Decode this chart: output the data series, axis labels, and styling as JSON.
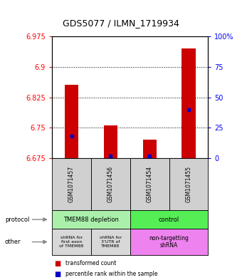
{
  "title": "GDS5077 / ILMN_1719934",
  "samples": [
    "GSM1071457",
    "GSM1071456",
    "GSM1071454",
    "GSM1071455"
  ],
  "bar_values": [
    6.855,
    6.755,
    6.72,
    6.945
  ],
  "bar_base": 6.675,
  "percentile_values": [
    0.18,
    0.02,
    0.02,
    0.4
  ],
  "ylim": [
    6.675,
    6.975
  ],
  "yticks": [
    6.675,
    6.75,
    6.825,
    6.9,
    6.975
  ],
  "ytick_labels": [
    "6.675",
    "6.75",
    "6.825",
    "6.9",
    "6.975"
  ],
  "y2ticks": [
    0,
    25,
    50,
    75,
    100
  ],
  "y2tick_labels": [
    "0",
    "25",
    "50",
    "75",
    "100%"
  ],
  "grid_values": [
    6.75,
    6.825,
    6.9
  ],
  "protocol_labels": [
    "TMEM88 depletion",
    "control"
  ],
  "protocol_color_left": "#aaf0aa",
  "protocol_color_right": "#55ee55",
  "other_labels_left1": "shRNA for\nfirst exon\nof TMEM88",
  "other_labels_left2": "shRNA for\n3'UTR of\nTMEM88",
  "other_labels_right": "non-targetting\nshRNA",
  "other_color_grey": "#d8d8d8",
  "other_color_pink": "#ee82ee",
  "bar_color": "#cc0000",
  "blue_color": "#0000cc",
  "legend_red": "transformed count",
  "legend_blue": "percentile rank within the sample",
  "sample_bg_color": "#d0d0d0",
  "bar_width": 0.35
}
